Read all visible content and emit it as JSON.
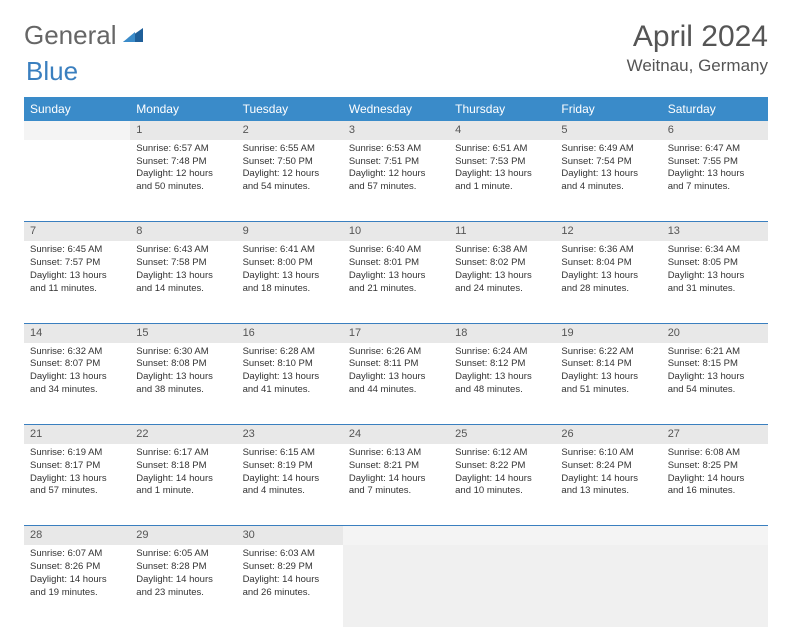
{
  "brand": {
    "part1": "General",
    "part2": "Blue"
  },
  "title": "April 2024",
  "location": "Weitnau, Germany",
  "colors": {
    "header_bg": "#3a8bc9",
    "header_text": "#ffffff",
    "daynum_bg": "#e8e8e8",
    "border": "#3a7fbf",
    "text": "#333333",
    "brand_gray": "#666666",
    "brand_blue": "#3a7fbf"
  },
  "weekdays": [
    "Sunday",
    "Monday",
    "Tuesday",
    "Wednesday",
    "Thursday",
    "Friday",
    "Saturday"
  ],
  "weeks": [
    {
      "nums": [
        "",
        "1",
        "2",
        "3",
        "4",
        "5",
        "6"
      ],
      "cells": [
        null,
        {
          "sunrise": "6:57 AM",
          "sunset": "7:48 PM",
          "daylight": "12 hours and 50 minutes."
        },
        {
          "sunrise": "6:55 AM",
          "sunset": "7:50 PM",
          "daylight": "12 hours and 54 minutes."
        },
        {
          "sunrise": "6:53 AM",
          "sunset": "7:51 PM",
          "daylight": "12 hours and 57 minutes."
        },
        {
          "sunrise": "6:51 AM",
          "sunset": "7:53 PM",
          "daylight": "13 hours and 1 minute."
        },
        {
          "sunrise": "6:49 AM",
          "sunset": "7:54 PM",
          "daylight": "13 hours and 4 minutes."
        },
        {
          "sunrise": "6:47 AM",
          "sunset": "7:55 PM",
          "daylight": "13 hours and 7 minutes."
        }
      ]
    },
    {
      "nums": [
        "7",
        "8",
        "9",
        "10",
        "11",
        "12",
        "13"
      ],
      "cells": [
        {
          "sunrise": "6:45 AM",
          "sunset": "7:57 PM",
          "daylight": "13 hours and 11 minutes."
        },
        {
          "sunrise": "6:43 AM",
          "sunset": "7:58 PM",
          "daylight": "13 hours and 14 minutes."
        },
        {
          "sunrise": "6:41 AM",
          "sunset": "8:00 PM",
          "daylight": "13 hours and 18 minutes."
        },
        {
          "sunrise": "6:40 AM",
          "sunset": "8:01 PM",
          "daylight": "13 hours and 21 minutes."
        },
        {
          "sunrise": "6:38 AM",
          "sunset": "8:02 PM",
          "daylight": "13 hours and 24 minutes."
        },
        {
          "sunrise": "6:36 AM",
          "sunset": "8:04 PM",
          "daylight": "13 hours and 28 minutes."
        },
        {
          "sunrise": "6:34 AM",
          "sunset": "8:05 PM",
          "daylight": "13 hours and 31 minutes."
        }
      ]
    },
    {
      "nums": [
        "14",
        "15",
        "16",
        "17",
        "18",
        "19",
        "20"
      ],
      "cells": [
        {
          "sunrise": "6:32 AM",
          "sunset": "8:07 PM",
          "daylight": "13 hours and 34 minutes."
        },
        {
          "sunrise": "6:30 AM",
          "sunset": "8:08 PM",
          "daylight": "13 hours and 38 minutes."
        },
        {
          "sunrise": "6:28 AM",
          "sunset": "8:10 PM",
          "daylight": "13 hours and 41 minutes."
        },
        {
          "sunrise": "6:26 AM",
          "sunset": "8:11 PM",
          "daylight": "13 hours and 44 minutes."
        },
        {
          "sunrise": "6:24 AM",
          "sunset": "8:12 PM",
          "daylight": "13 hours and 48 minutes."
        },
        {
          "sunrise": "6:22 AM",
          "sunset": "8:14 PM",
          "daylight": "13 hours and 51 minutes."
        },
        {
          "sunrise": "6:21 AM",
          "sunset": "8:15 PM",
          "daylight": "13 hours and 54 minutes."
        }
      ]
    },
    {
      "nums": [
        "21",
        "22",
        "23",
        "24",
        "25",
        "26",
        "27"
      ],
      "cells": [
        {
          "sunrise": "6:19 AM",
          "sunset": "8:17 PM",
          "daylight": "13 hours and 57 minutes."
        },
        {
          "sunrise": "6:17 AM",
          "sunset": "8:18 PM",
          "daylight": "14 hours and 1 minute."
        },
        {
          "sunrise": "6:15 AM",
          "sunset": "8:19 PM",
          "daylight": "14 hours and 4 minutes."
        },
        {
          "sunrise": "6:13 AM",
          "sunset": "8:21 PM",
          "daylight": "14 hours and 7 minutes."
        },
        {
          "sunrise": "6:12 AM",
          "sunset": "8:22 PM",
          "daylight": "14 hours and 10 minutes."
        },
        {
          "sunrise": "6:10 AM",
          "sunset": "8:24 PM",
          "daylight": "14 hours and 13 minutes."
        },
        {
          "sunrise": "6:08 AM",
          "sunset": "8:25 PM",
          "daylight": "14 hours and 16 minutes."
        }
      ]
    },
    {
      "nums": [
        "28",
        "29",
        "30",
        "",
        "",
        "",
        ""
      ],
      "cells": [
        {
          "sunrise": "6:07 AM",
          "sunset": "8:26 PM",
          "daylight": "14 hours and 19 minutes."
        },
        {
          "sunrise": "6:05 AM",
          "sunset": "8:28 PM",
          "daylight": "14 hours and 23 minutes."
        },
        {
          "sunrise": "6:03 AM",
          "sunset": "8:29 PM",
          "daylight": "14 hours and 26 minutes."
        },
        null,
        null,
        null,
        null
      ]
    }
  ],
  "labels": {
    "sunrise": "Sunrise:",
    "sunset": "Sunset:",
    "daylight": "Daylight:"
  }
}
